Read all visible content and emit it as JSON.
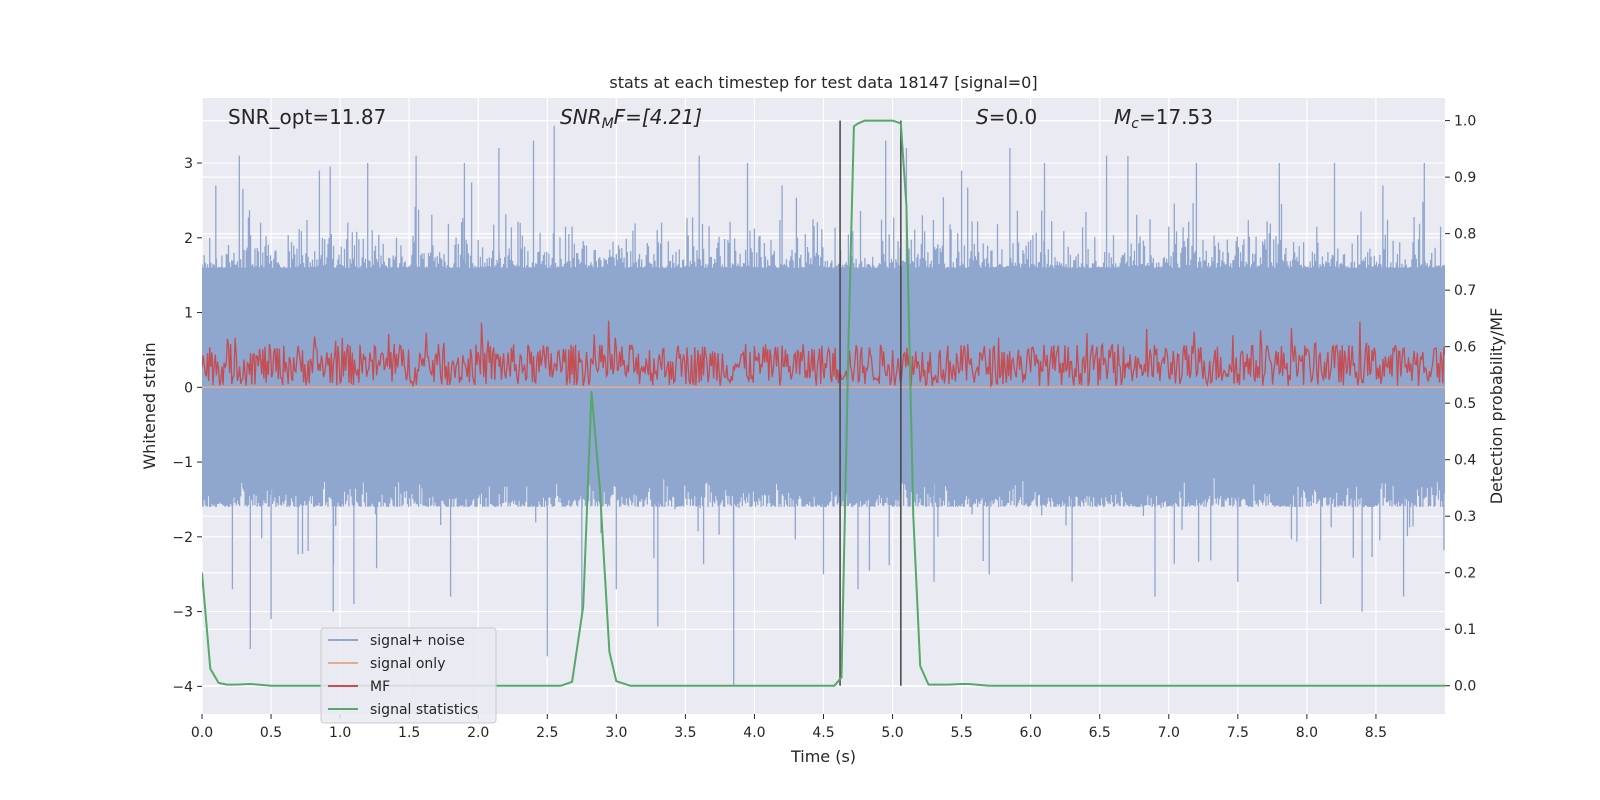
{
  "chart_data": {
    "type": "line",
    "title": "stats at each timestep for test data 18147 [signal=0]",
    "xlabel": "Time (s)",
    "ylabel": "Whitened strain",
    "y2label": "Detection probability/MF",
    "xlim": [
      0.0,
      9.0
    ],
    "ylim": [
      -4.37,
      3.87
    ],
    "y2lim": [
      -0.05,
      1.04
    ],
    "x_ticks": [
      0.0,
      0.5,
      1.0,
      1.5,
      2.0,
      2.5,
      3.0,
      3.5,
      4.0,
      4.5,
      5.0,
      5.5,
      6.0,
      6.5,
      7.0,
      7.5,
      8.0,
      8.5
    ],
    "x_tick_labels": [
      "0.0",
      "0.5",
      "1.0",
      "1.5",
      "2.0",
      "2.5",
      "3.0",
      "3.5",
      "4.0",
      "4.5",
      "5.0",
      "5.5",
      "6.0",
      "6.5",
      "7.0",
      "7.5",
      "8.0",
      "8.5"
    ],
    "y_ticks": [
      -4,
      -3,
      -2,
      -1,
      0,
      1,
      2,
      3
    ],
    "y_tick_labels": [
      "−4",
      "−3",
      "−2",
      "−1",
      "0",
      "1",
      "2",
      "3"
    ],
    "y2_ticks": [
      0.0,
      0.1,
      0.2,
      0.3,
      0.4,
      0.5,
      0.6,
      0.7,
      0.8,
      0.9,
      1.0
    ],
    "y2_tick_labels": [
      "0.0",
      "0.1",
      "0.2",
      "0.3",
      "0.4",
      "0.5",
      "0.6",
      "0.7",
      "0.8",
      "0.9",
      "1.0"
    ],
    "annotations": {
      "snr_opt": "SNR_opt=11.87",
      "snr_mf_base": "SNR",
      "snr_mf_sub": "M",
      "snr_mf_rest": "F=[4.21]",
      "s_var": "S",
      "s_rest": "=0.0",
      "mc_base": "M",
      "mc_sub": "c",
      "mc_rest": "=17.53"
    },
    "vlines": [
      4.62,
      5.06
    ],
    "series": [
      {
        "name": "signal+ noise",
        "color": "#8fa6cf",
        "band": {
          "x_start": 0.0,
          "x_end": 9.0,
          "step": 0.008,
          "core_upper": 1.6,
          "core_lower": -1.6,
          "mean_upper": 2.0,
          "mean_lower": -1.8,
          "spikes": [
            [
              0.1,
              2.7
            ],
            [
              0.22,
              -2.7
            ],
            [
              0.27,
              3.1
            ],
            [
              0.35,
              -3.5
            ],
            [
              0.5,
              -3.1
            ],
            [
              0.85,
              2.9
            ],
            [
              0.95,
              -3.0
            ],
            [
              1.1,
              -2.9
            ],
            [
              1.2,
              3.0
            ],
            [
              1.55,
              3.1
            ],
            [
              1.8,
              -2.8
            ],
            [
              1.9,
              3.0
            ],
            [
              2.15,
              3.2
            ],
            [
              2.4,
              3.3
            ],
            [
              2.5,
              -3.6
            ],
            [
              2.55,
              3.5
            ],
            [
              2.75,
              -3.0
            ],
            [
              3.0,
              -2.7
            ],
            [
              3.3,
              -3.2
            ],
            [
              3.6,
              3.1
            ],
            [
              3.85,
              -4.0
            ],
            [
              3.95,
              3.0
            ],
            [
              4.2,
              2.7
            ],
            [
              4.5,
              -2.5
            ],
            [
              4.75,
              -2.7
            ],
            [
              4.95,
              3.3
            ],
            [
              5.1,
              3.2
            ],
            [
              5.3,
              -2.6
            ],
            [
              5.5,
              2.9
            ],
            [
              5.7,
              -2.5
            ],
            [
              5.85,
              3.2
            ],
            [
              6.1,
              3.0
            ],
            [
              6.3,
              -2.6
            ],
            [
              6.55,
              3.1
            ],
            [
              6.9,
              -2.8
            ],
            [
              7.2,
              3.0
            ],
            [
              7.5,
              -2.6
            ],
            [
              7.8,
              3.0
            ],
            [
              8.1,
              -2.9
            ],
            [
              8.2,
              3.0
            ],
            [
              8.4,
              -3.0
            ],
            [
              8.55,
              2.7
            ],
            [
              8.7,
              -2.8
            ],
            [
              8.85,
              3.0
            ]
          ]
        }
      },
      {
        "name": "signal only",
        "color": "#e8a98c",
        "x": [
          0.0,
          9.0
        ],
        "y": [
          0.0,
          0.0
        ]
      },
      {
        "name": "MF",
        "color": "#c44e52",
        "band": {
          "x_start": 0.0,
          "x_end": 9.0,
          "step": 0.008,
          "center": 0.3,
          "amp": 0.28,
          "max": 0.95,
          "min": 0.0
        }
      },
      {
        "name": "signal statistics",
        "color": "#55a868",
        "axis": "right",
        "x": [
          0.0,
          0.06,
          0.12,
          0.18,
          0.25,
          0.35,
          0.5,
          0.7,
          1.0,
          2.0,
          2.6,
          2.68,
          2.76,
          2.82,
          2.88,
          2.95,
          3.0,
          3.1,
          3.5,
          4.0,
          4.5,
          4.58,
          4.63,
          4.68,
          4.72,
          4.75,
          4.8,
          5.0,
          5.06,
          5.1,
          5.15,
          5.2,
          5.26,
          5.4,
          5.5,
          5.55,
          5.7,
          6.0,
          7.0,
          8.0,
          9.0
        ],
        "y": [
          0.2,
          0.03,
          0.005,
          0.002,
          0.002,
          0.003,
          0.0,
          0.0,
          0.0,
          0.0,
          0.0,
          0.007,
          0.14,
          0.52,
          0.35,
          0.06,
          0.008,
          0.0,
          0.0,
          0.0,
          0.0,
          0.0,
          0.015,
          0.6,
          0.99,
          0.995,
          1.0,
          1.0,
          0.995,
          0.85,
          0.3,
          0.035,
          0.002,
          0.002,
          0.003,
          0.003,
          0.0,
          0.0,
          0.0,
          0.0,
          0.0
        ]
      }
    ],
    "legend_location": "lower left"
  }
}
